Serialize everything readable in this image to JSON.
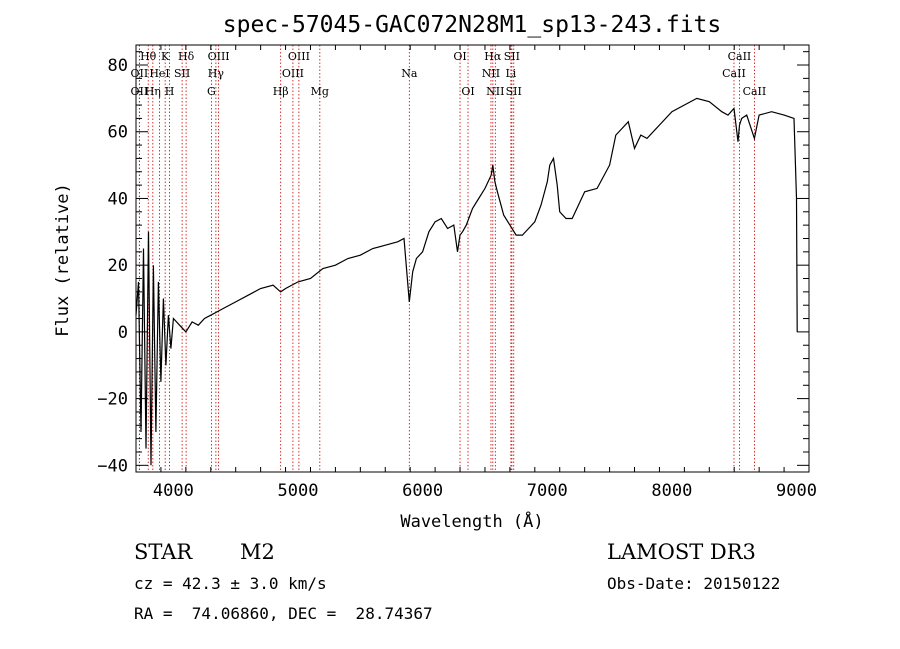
{
  "chart_data": {
    "type": "line",
    "title": "spec-57045-GAC072N28M1_sp13-243.fits",
    "xlabel": "Wavelength (Å)",
    "ylabel": "Flux (relative)",
    "xlim": [
      3700,
      9100
    ],
    "ylim": [
      -42,
      86
    ],
    "xticks": [
      4000,
      5000,
      6000,
      7000,
      8000,
      9000
    ],
    "yticks": [
      -40,
      -20,
      0,
      20,
      40,
      60,
      80
    ],
    "xtick_labels": [
      "4000",
      "5000",
      "6000",
      "7000",
      "8000",
      "9000"
    ],
    "ytick_labels": [
      "−40",
      "−20",
      "0",
      "20",
      "40",
      "60",
      "80"
    ],
    "series": [
      {
        "name": "flux",
        "x": [
          3700,
          3720,
          3740,
          3760,
          3780,
          3800,
          3820,
          3840,
          3860,
          3880,
          3900,
          3920,
          3940,
          3960,
          3980,
          4000,
          4050,
          4100,
          4150,
          4200,
          4250,
          4300,
          4350,
          4400,
          4500,
          4600,
          4700,
          4800,
          4860,
          4900,
          5000,
          5100,
          5200,
          5300,
          5400,
          5500,
          5600,
          5700,
          5800,
          5850,
          5893,
          5920,
          5950,
          6000,
          6050,
          6100,
          6150,
          6200,
          6250,
          6280,
          6300,
          6320,
          6350,
          6400,
          6450,
          6500,
          6550,
          6563,
          6580,
          6600,
          6650,
          6700,
          6750,
          6800,
          6850,
          6900,
          6950,
          7000,
          7020,
          7050,
          7080,
          7100,
          7150,
          7200,
          7300,
          7400,
          7500,
          7550,
          7600,
          7650,
          7700,
          7750,
          7800,
          7900,
          8000,
          8100,
          8200,
          8300,
          8400,
          8450,
          8498,
          8530,
          8542,
          8560,
          8600,
          8662,
          8700,
          8800,
          8900,
          8980,
          9000,
          9005
        ],
        "values": [
          5,
          15,
          -30,
          25,
          -35,
          30,
          -40,
          20,
          -30,
          15,
          -15,
          10,
          -10,
          5,
          -5,
          4,
          2,
          0,
          3,
          2,
          4,
          5,
          6,
          7,
          9,
          11,
          13,
          14,
          12,
          13,
          15,
          16,
          19,
          20,
          22,
          23,
          25,
          26,
          27,
          28,
          9,
          18,
          22,
          24,
          30,
          33,
          34,
          31,
          32,
          24,
          29,
          30,
          32,
          37,
          40,
          43,
          47,
          50,
          45,
          42,
          35,
          32,
          29,
          29,
          31,
          33,
          38,
          45,
          50,
          52,
          44,
          36,
          34,
          34,
          42,
          43,
          50,
          59,
          61,
          63,
          55,
          59,
          58,
          62,
          66,
          68,
          70,
          69,
          66,
          65,
          67,
          57,
          62,
          64,
          65,
          58,
          65,
          66,
          65,
          64,
          40,
          0
        ],
        "color": "#000000"
      }
    ],
    "spectral_lines": [
      {
        "label": "Hθ",
        "x": 3798,
        "row": 0
      },
      {
        "label": "OII",
        "x": 3727,
        "row": 1
      },
      {
        "label": "OII",
        "x": 3727,
        "row": 2
      },
      {
        "label": "Hη",
        "x": 3835,
        "row": 2
      },
      {
        "label": "K",
        "x": 3934,
        "row": 0
      },
      {
        "label": "HeI",
        "x": 3889,
        "row": 1
      },
      {
        "label": "H",
        "x": 3969,
        "row": 2
      },
      {
        "label": "SII",
        "x": 4070,
        "row": 1
      },
      {
        "label": "Hδ",
        "x": 4102,
        "row": 0
      },
      {
        "label": "OIII",
        "x": 4363,
        "row": 0
      },
      {
        "label": "Hγ",
        "x": 4341,
        "row": 1
      },
      {
        "label": "G",
        "x": 4305,
        "row": 2
      },
      {
        "label": "OIII",
        "x": 5007,
        "row": 0
      },
      {
        "label": "OIII",
        "x": 4959,
        "row": 1
      },
      {
        "label": "Hβ",
        "x": 4861,
        "row": 2
      },
      {
        "label": "Mg",
        "x": 5175,
        "row": 2
      },
      {
        "label": "Na",
        "x": 5893,
        "row": 1
      },
      {
        "label": "OI",
        "x": 6300,
        "row": 0
      },
      {
        "label": "OI",
        "x": 6364,
        "row": 2
      },
      {
        "label": "Hα",
        "x": 6563,
        "row": 0
      },
      {
        "label": "NII",
        "x": 6548,
        "row": 1
      },
      {
        "label": "NII",
        "x": 6583,
        "row": 2
      },
      {
        "label": "SII",
        "x": 6716,
        "row": 0
      },
      {
        "label": "Li",
        "x": 6708,
        "row": 1
      },
      {
        "label": "SII",
        "x": 6731,
        "row": 2
      },
      {
        "label": "CaII",
        "x": 8542,
        "row": 0
      },
      {
        "label": "CaII",
        "x": 8498,
        "row": 1
      },
      {
        "label": "CaII",
        "x": 8662,
        "row": 2
      }
    ],
    "line_marker_color": "#cc0000"
  },
  "info": {
    "class": "STAR",
    "subclass": "M2",
    "survey": "LAMOST DR3",
    "cz": "cz = 42.3 ± 3.0 km/s",
    "obs_date": "Obs-Date: 20150122",
    "radec": "RA =  74.06860, DEC =  28.74367"
  }
}
